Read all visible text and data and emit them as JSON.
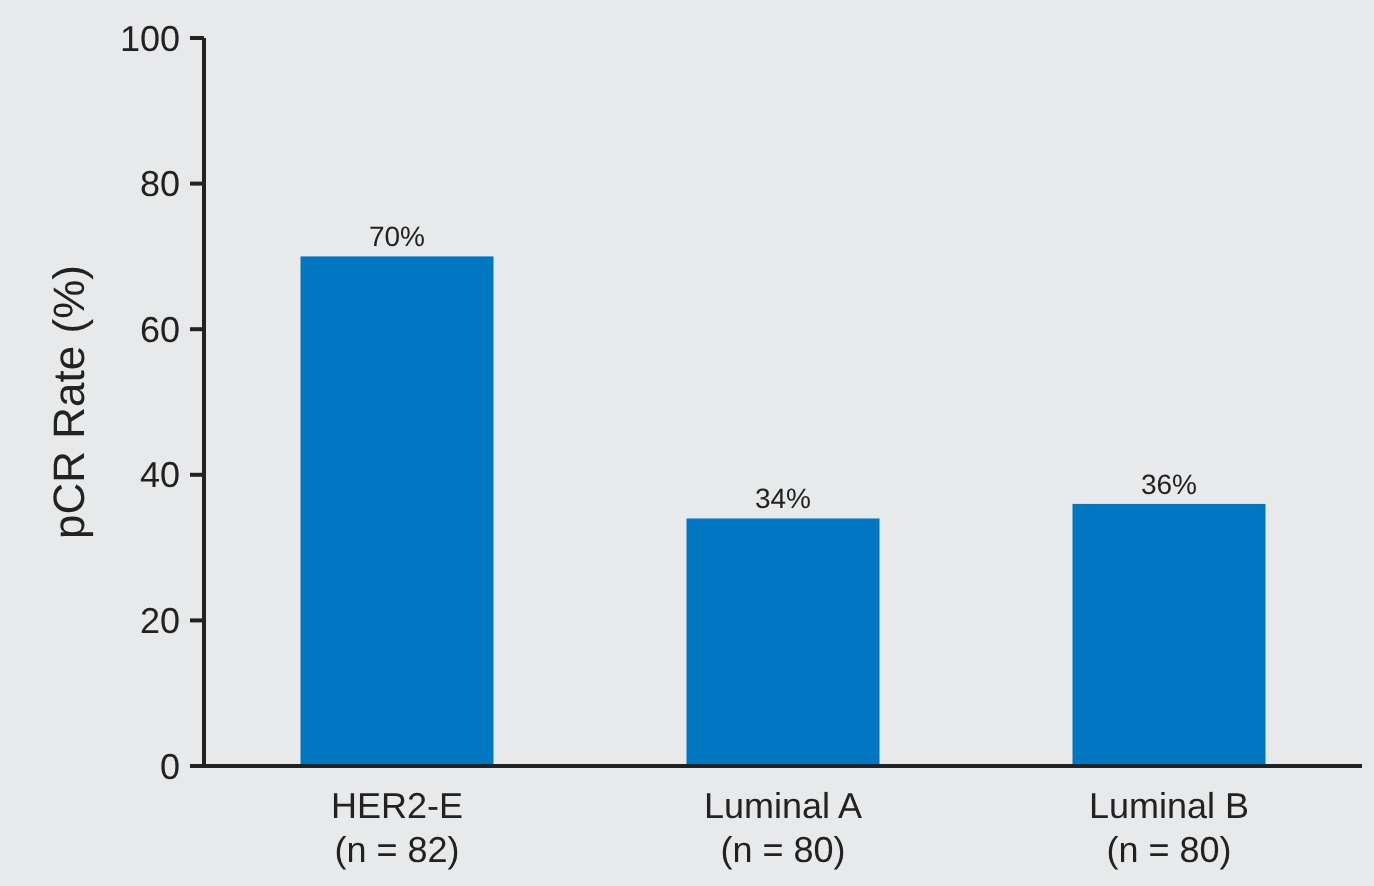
{
  "chart_data": {
    "type": "bar",
    "ylabel": "pCR Rate (%)",
    "categories": [
      "HER2-E\n(n = 82)",
      "Luminal A\n(n = 80)",
      "Luminal B\n(n = 80)"
    ],
    "values": [
      70,
      34,
      36
    ],
    "color": "#0077c0",
    "value_labels": [
      "70%",
      "34%",
      "36%"
    ],
    "ylim": [
      0,
      100
    ],
    "yticks": [
      0,
      20,
      40,
      60,
      80,
      100
    ],
    "grid": false
  }
}
